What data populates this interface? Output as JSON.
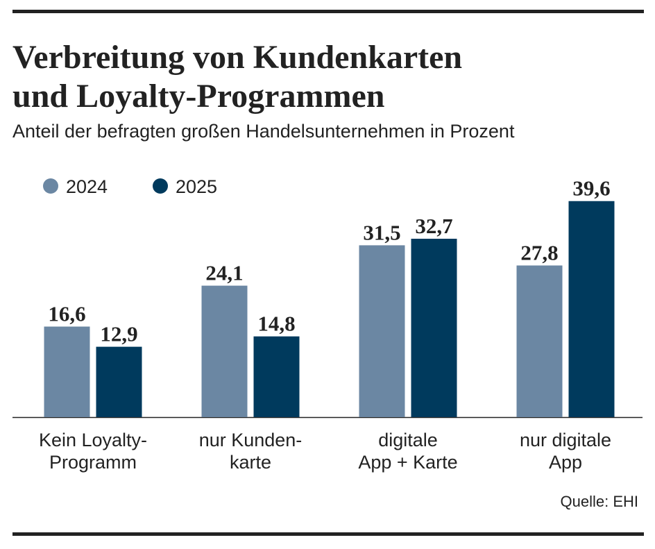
{
  "chart_data": {
    "type": "bar",
    "title": [
      "Verbreitung von Kundenkarten",
      "und Loyalty-Programmen"
    ],
    "subtitle": "Anteil der befragten großen Handelsunternehmen in Prozent",
    "categories": [
      [
        "Kein Loyalty-",
        "Programm"
      ],
      [
        "nur Kunden-",
        "karte"
      ],
      [
        "digitale",
        "App + Karte"
      ],
      [
        "nur digitale",
        "App"
      ]
    ],
    "series": [
      {
        "name": "2024",
        "color": "#6b87a3",
        "values": [
          16.6,
          24.1,
          31.5,
          27.8
        ],
        "value_labels": [
          "16,6",
          "24,1",
          "31,5",
          "27,8"
        ]
      },
      {
        "name": "2025",
        "color": "#003a5d",
        "values": [
          12.9,
          14.8,
          32.7,
          39.6
        ],
        "value_labels": [
          "12,9",
          "14,8",
          "32,7",
          "39,6"
        ]
      }
    ],
    "legend": "top-left",
    "source": "Quelle: EHI"
  }
}
